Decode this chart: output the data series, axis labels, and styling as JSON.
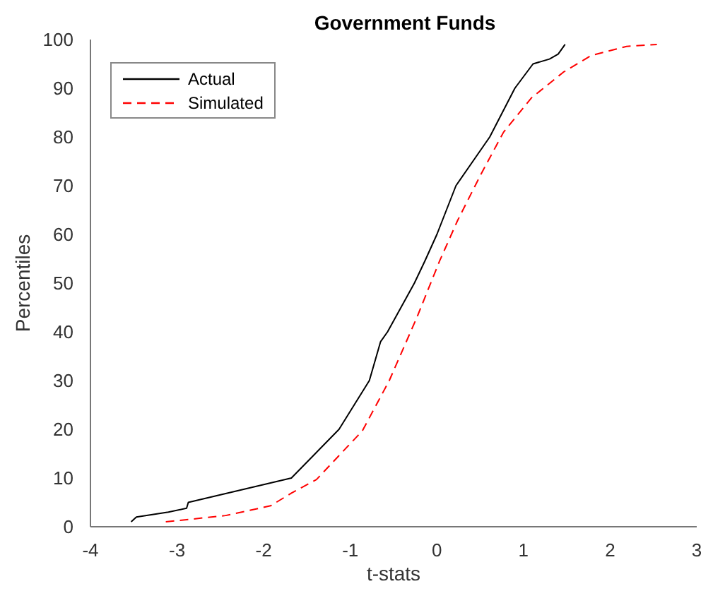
{
  "chart_data": {
    "type": "line",
    "title": "Government Funds",
    "xlabel": "t-stats",
    "ylabel": "Percentiles",
    "xlim": [
      -4,
      3
    ],
    "xticks": [
      -4,
      -3,
      -2,
      -1,
      0,
      1,
      2,
      3
    ],
    "ylim": [
      0,
      100
    ],
    "yticks": [
      0,
      10,
      20,
      30,
      40,
      50,
      60,
      70,
      80,
      90,
      100
    ],
    "grid": false,
    "legend": "top left",
    "marker": "none",
    "series": [
      {
        "name": "Actual",
        "color": "#000000",
        "line_style": "solid",
        "x": [
          -3.53,
          -3.47,
          -3.1,
          -2.89,
          -2.87,
          -1.68,
          -1.13,
          -0.78,
          -0.65,
          -0.57,
          -0.26,
          -0.14,
          0.0,
          0.22,
          0.61,
          0.9,
          1.11,
          1.3,
          1.4,
          1.48
        ],
        "values": [
          1,
          2,
          3,
          3.8,
          5,
          10,
          20,
          30,
          38,
          40,
          50,
          54.5,
          60,
          70,
          80,
          90,
          95,
          96,
          97,
          99
        ]
      },
      {
        "name": "Simulated",
        "color": "#ff0000",
        "line_style": "dashed",
        "x": [
          -3.13,
          -2.44,
          -1.92,
          -1.68,
          -1.39,
          -0.86,
          -0.55,
          -0.23,
          0.03,
          0.24,
          0.51,
          0.77,
          1.09,
          1.46,
          1.78,
          2.19,
          2.54
        ],
        "values": [
          1,
          2.3,
          4.3,
          6.9,
          9.7,
          19.7,
          30,
          43,
          54.5,
          62.9,
          72.4,
          81,
          88,
          93.3,
          96.7,
          98.6,
          99
        ]
      }
    ]
  }
}
